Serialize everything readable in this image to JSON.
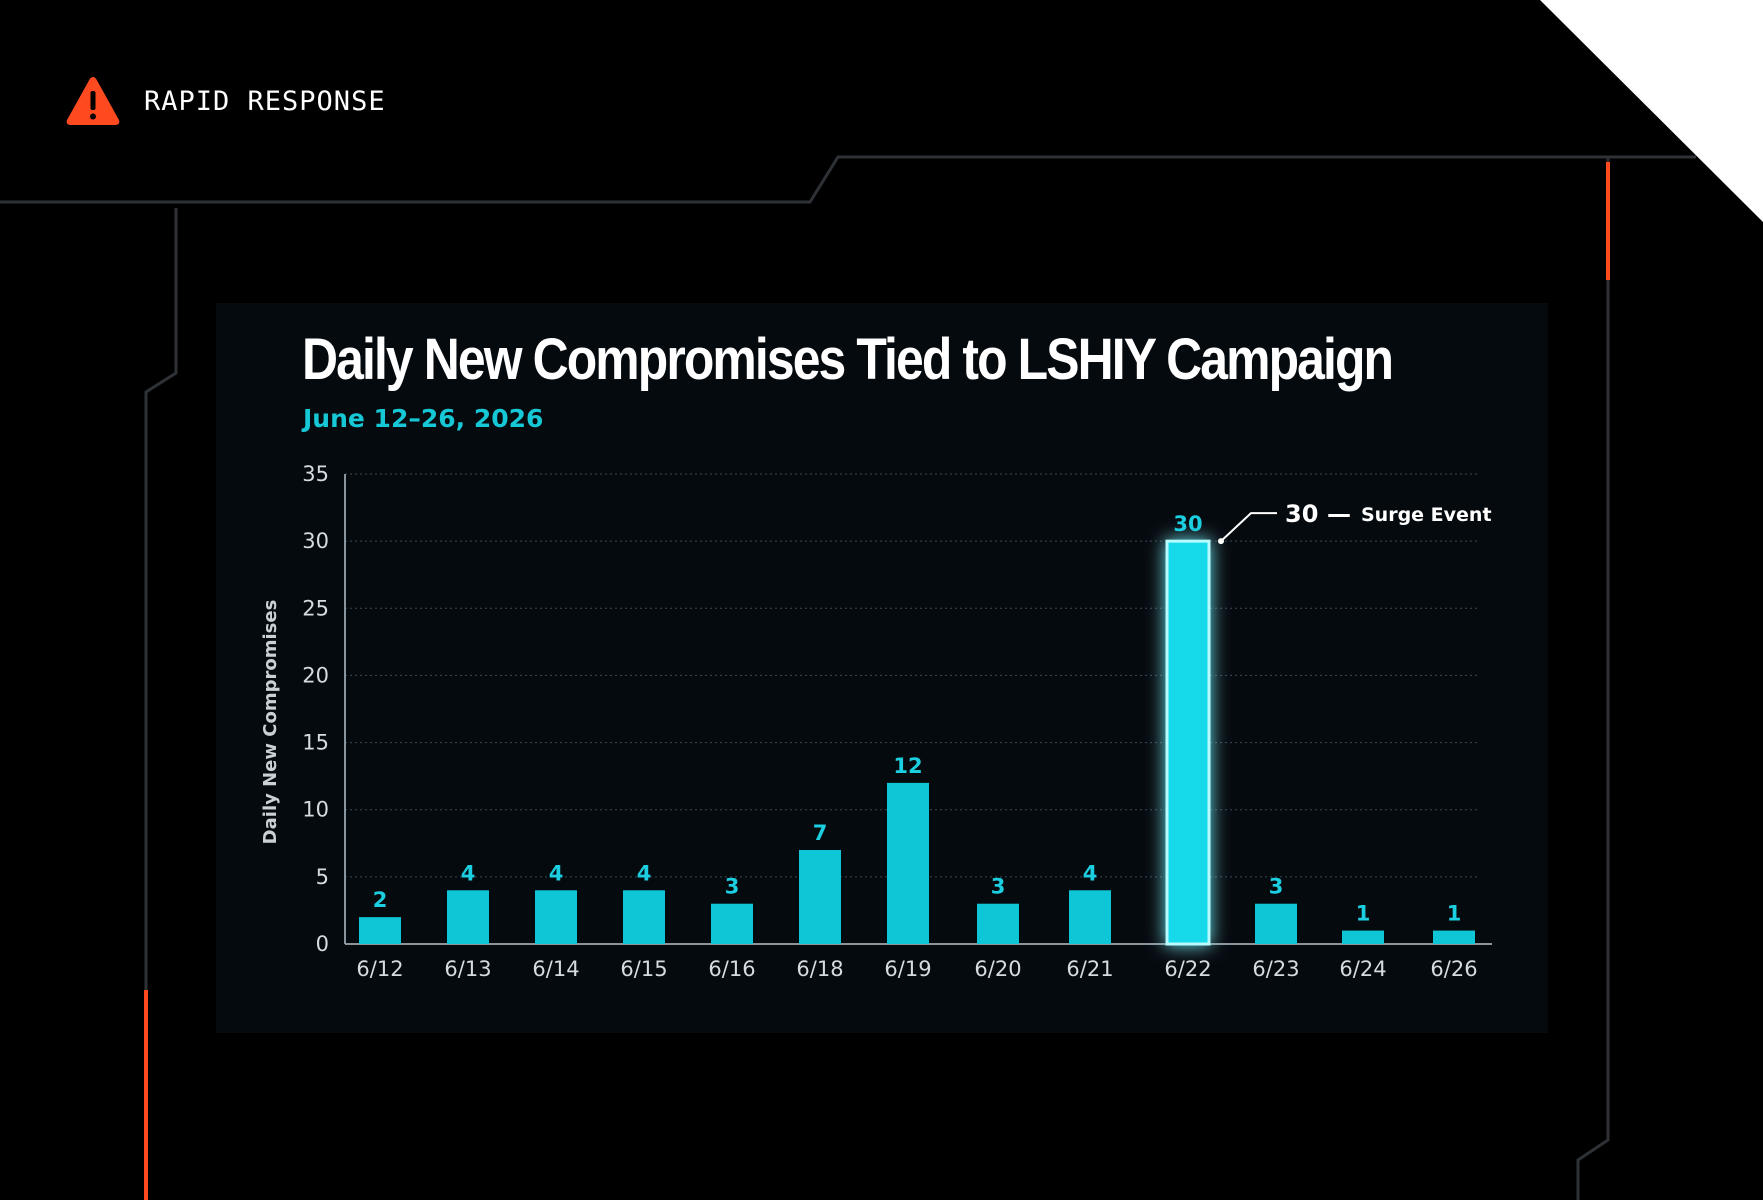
{
  "header": {
    "title": "RAPID RESPONSE",
    "icon": "warning-icon",
    "icon_color": "#ff4a1f"
  },
  "colors": {
    "background": "#000000",
    "bar": "#0fc6d6",
    "highlight_bar": "#19d9ea",
    "accent": "#ff4a1f",
    "frame_line": "#2e3236"
  },
  "chart_data": {
    "type": "bar",
    "title": "Daily New Compromises Tied to LSHIY Campaign",
    "subtitle": "June 12–26, 2026",
    "xlabel": "",
    "ylabel": "Daily New Compromises",
    "ylim": [
      0,
      35
    ],
    "yticks": [
      0,
      5,
      10,
      15,
      20,
      25,
      30,
      35
    ],
    "grid": true,
    "categories": [
      "6/12",
      "6/13",
      "6/14",
      "6/15",
      "6/16",
      "6/18",
      "6/19",
      "6/20",
      "6/21",
      "6/22",
      "6/23",
      "6/24",
      "6/26"
    ],
    "values": [
      2,
      4,
      4,
      4,
      3,
      7,
      12,
      3,
      4,
      30,
      3,
      1,
      1
    ],
    "highlight_index": 9,
    "annotation": {
      "value": "30",
      "separator": "—",
      "text": "Surge Event"
    }
  }
}
